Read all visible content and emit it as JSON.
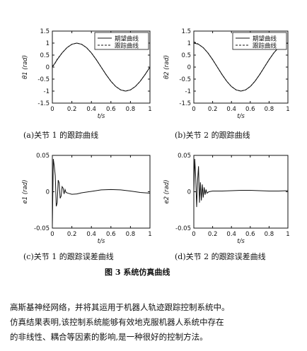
{
  "figure": {
    "subcaptions": [
      "(a)关节 1 的跟踪曲线",
      "(b)关节 2 的跟踪曲线",
      "(c)关节 1 的跟踪误差曲线",
      "(d)关节 2 的跟踪误差曲线"
    ],
    "caption": "图 3   系统仿真曲线"
  },
  "paragraph": [
    "高斯基神经网络，并将其运用于机器人轨迹跟踪控制系统中。",
    "仿真结果表明,该控制系统能够有效地克服机器人系统中存在",
    "的非线性、耦合等因素的影响,是一种很好的控制方法。"
  ],
  "chart_data": [
    {
      "type": "line",
      "title": "",
      "xlabel": "t/s",
      "ylabel": "θ1 (rad)",
      "xlim": [
        0,
        1
      ],
      "ylim": [
        -1.5,
        1.5
      ],
      "xticks": [
        "0",
        "0.2",
        "0.4",
        "0.6",
        "0.8",
        "1"
      ],
      "yticks": [
        "-1.5",
        "-1",
        "-0.5",
        "0",
        "0.5",
        "1",
        "1.5"
      ],
      "legend": {
        "placement": "top-right",
        "entries": [
          "期望曲线",
          "跟踪曲线"
        ]
      },
      "series": [
        {
          "name": "期望曲线",
          "style": "solid",
          "x": [
            0,
            0.05,
            0.1,
            0.15,
            0.2,
            0.25,
            0.3,
            0.35,
            0.4,
            0.45,
            0.5,
            0.55,
            0.6,
            0.65,
            0.7,
            0.75,
            0.8,
            0.85,
            0.9,
            0.95,
            1
          ],
          "y": [
            0,
            0.31,
            0.59,
            0.81,
            0.95,
            1,
            0.95,
            0.81,
            0.59,
            0.31,
            0,
            -0.31,
            -0.59,
            -0.81,
            -0.95,
            -1,
            -0.95,
            -0.81,
            -0.59,
            -0.31,
            0
          ]
        },
        {
          "name": "跟踪曲线",
          "style": "dashed",
          "x": [
            0,
            0.02,
            0.05,
            0.1,
            0.15,
            0.2,
            0.25,
            0.3,
            0.35,
            0.4,
            0.45,
            0.5,
            0.55,
            0.6,
            0.65,
            0.7,
            0.75,
            0.8,
            0.85,
            0.9,
            0.95,
            1
          ],
          "y": [
            0.05,
            0.1,
            0.33,
            0.59,
            0.81,
            0.95,
            1,
            0.95,
            0.81,
            0.59,
            0.31,
            0,
            -0.31,
            -0.59,
            -0.81,
            -0.95,
            -1,
            -0.95,
            -0.81,
            -0.59,
            -0.31,
            0
          ]
        }
      ]
    },
    {
      "type": "line",
      "title": "",
      "xlabel": "t/s",
      "ylabel": "θ2 (rad)",
      "xlim": [
        0,
        1
      ],
      "ylim": [
        -1.5,
        1.5
      ],
      "xticks": [
        "0",
        "0.2",
        "0.4",
        "0.6",
        "0.8",
        "1"
      ],
      "yticks": [
        "-1.5",
        "-1",
        "-0.5",
        "0",
        "0.5",
        "1",
        "1.5"
      ],
      "legend": {
        "placement": "top-right",
        "entries": [
          "期望曲线",
          "跟踪曲线"
        ]
      },
      "series": [
        {
          "name": "期望曲线",
          "style": "solid",
          "x": [
            0,
            0.05,
            0.1,
            0.15,
            0.2,
            0.25,
            0.3,
            0.35,
            0.4,
            0.45,
            0.5,
            0.55,
            0.6,
            0.65,
            0.7,
            0.75,
            0.8,
            0.85,
            0.9,
            0.95,
            1
          ],
          "y": [
            1,
            0.95,
            0.81,
            0.59,
            0.31,
            0,
            -0.31,
            -0.59,
            -0.81,
            -0.95,
            -1,
            -0.95,
            -0.81,
            -0.59,
            -0.31,
            0,
            0.31,
            0.59,
            0.81,
            0.95,
            1
          ]
        },
        {
          "name": "跟踪曲线",
          "style": "dashed",
          "x": [
            0,
            0.02,
            0.05,
            0.1,
            0.15,
            0.2,
            0.25,
            0.3,
            0.35,
            0.4,
            0.45,
            0.5,
            0.55,
            0.6,
            0.65,
            0.7,
            0.75,
            0.8,
            0.85,
            0.9,
            0.95,
            1
          ],
          "y": [
            1.05,
            1.02,
            0.95,
            0.81,
            0.59,
            0.31,
            0,
            -0.31,
            -0.59,
            -0.81,
            -0.95,
            -1,
            -0.95,
            -0.81,
            -0.59,
            -0.31,
            0,
            0.31,
            0.59,
            0.81,
            0.95,
            1
          ]
        }
      ]
    },
    {
      "type": "line",
      "title": "",
      "xlabel": "t/s",
      "ylabel": "e1 (rad)",
      "xlim": [
        0,
        1
      ],
      "ylim": [
        -0.05,
        0.05
      ],
      "xticks": [
        "0",
        "0.2",
        "0.4",
        "0.6",
        "0.8",
        "1"
      ],
      "yticks": [
        "-0.05",
        "0",
        "0.05"
      ],
      "series": [
        {
          "name": "",
          "style": "solid",
          "x": [
            0,
            0.01,
            0.02,
            0.03,
            0.04,
            0.05,
            0.06,
            0.07,
            0.08,
            0.09,
            0.1,
            0.11,
            0.12,
            0.13,
            0.14,
            0.16,
            0.2,
            0.25,
            0.3,
            0.4,
            0.5,
            0.6,
            0.7,
            0.8,
            0.9,
            1
          ],
          "y": [
            -0.047,
            0.045,
            0.035,
            0.022,
            -0.02,
            -0.015,
            0.016,
            0.012,
            -0.009,
            -0.006,
            0.007,
            0.005,
            -0.003,
            0.003,
            -0.001,
            -0.002,
            -0.0035,
            -0.003,
            -0.0015,
            0.0005,
            0.0025,
            0.003,
            0.0025,
            0.001,
            -0.001,
            -0.002
          ]
        }
      ]
    },
    {
      "type": "line",
      "title": "",
      "xlabel": "t/s",
      "ylabel": "e2 (rad)",
      "xlim": [
        0,
        1
      ],
      "ylim": [
        -0.05,
        0.05
      ],
      "xticks": [
        "0",
        "0.2",
        "0.4",
        "0.6",
        "0.8",
        "1"
      ],
      "yticks": [
        "-0.05",
        "0",
        "0.05"
      ],
      "series": [
        {
          "name": "",
          "style": "solid",
          "x": [
            0,
            0.01,
            0.02,
            0.03,
            0.04,
            0.05,
            0.06,
            0.07,
            0.08,
            0.09,
            0.1,
            0.11,
            0.12,
            0.13,
            0.14,
            0.16,
            0.2,
            0.25,
            0.3,
            0.4,
            0.5,
            0.6,
            0.7,
            0.8,
            0.9,
            1
          ],
          "y": [
            0,
            0.045,
            0.02,
            -0.021,
            0.015,
            0.035,
            -0.015,
            0.013,
            -0.012,
            0.01,
            -0.008,
            0.006,
            -0.004,
            0.003,
            -0.002,
            0,
            0.001,
            0.001,
            0.001,
            0.0015,
            0.002,
            0.002,
            0.0015,
            0.001,
            0.001,
            0.0015
          ]
        }
      ]
    }
  ]
}
